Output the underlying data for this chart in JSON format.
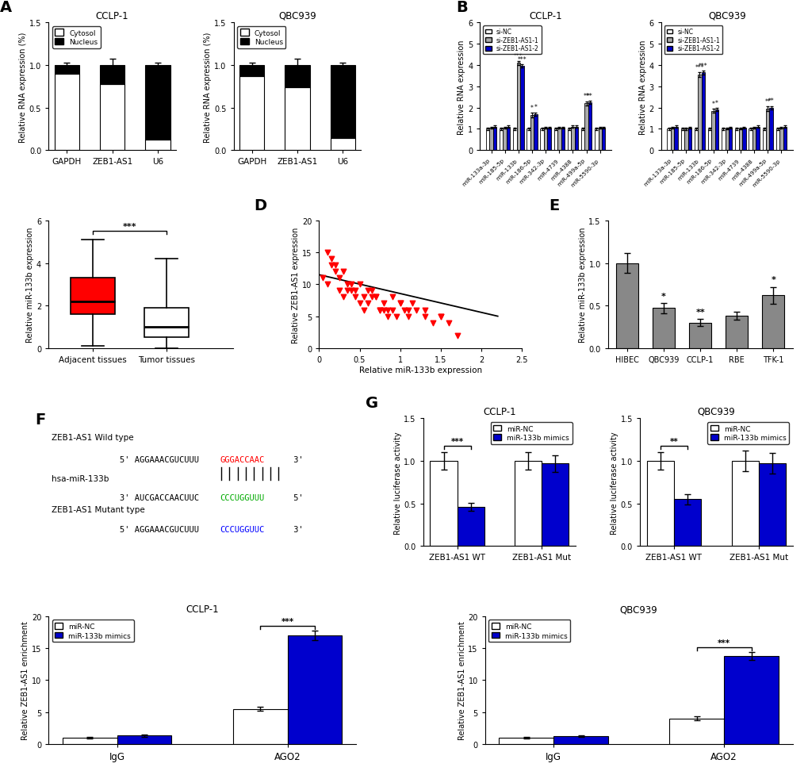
{
  "panel_A": {
    "title_left": "CCLP-1",
    "title_right": "QBC939",
    "categories": [
      "GAPDH",
      "ZEB1-AS1",
      "U6"
    ],
    "cytosol_CCLP1": [
      0.9,
      0.78,
      0.12
    ],
    "nucleus_CCLP1": [
      0.1,
      0.22,
      0.88
    ],
    "cytosol_QBC939": [
      0.87,
      0.74,
      0.14
    ],
    "nucleus_QBC939": [
      0.13,
      0.26,
      0.86
    ],
    "total_err": [
      0.03,
      0.07,
      0.03
    ],
    "ylabel": "Relative RNA expression (%)",
    "ylim": [
      0,
      1.5
    ],
    "yticks": [
      0.0,
      0.5,
      1.0,
      1.5
    ]
  },
  "panel_B": {
    "title_left": "CCLP-1",
    "title_right": "QBC939",
    "categories": [
      "miR-133a-3p",
      "miR-185-5p",
      "miR-133b",
      "miR-186-5p",
      "miR-342-3p",
      "miR-4739",
      "miR-4388",
      "miR-499a-5p",
      "miR-5590-3p"
    ],
    "siNC_CCLP1": [
      1.0,
      1.0,
      1.0,
      1.0,
      1.0,
      1.0,
      1.0,
      1.0,
      1.0
    ],
    "siZEB1_1_CCLP1": [
      1.05,
      1.05,
      4.1,
      1.65,
      1.05,
      1.05,
      1.1,
      2.2,
      1.05
    ],
    "siZEB1_2_CCLP1": [
      1.1,
      1.1,
      3.95,
      1.7,
      1.05,
      1.05,
      1.1,
      2.25,
      1.05
    ],
    "siNC_QBC939": [
      1.0,
      1.0,
      1.0,
      1.0,
      1.0,
      1.0,
      1.0,
      1.0,
      1.0
    ],
    "siZEB1_1_QBC939": [
      1.05,
      1.0,
      3.55,
      1.85,
      1.02,
      1.02,
      1.05,
      1.95,
      1.05
    ],
    "siZEB1_2_QBC939": [
      1.1,
      1.05,
      3.65,
      1.9,
      1.05,
      1.05,
      1.1,
      2.0,
      1.1
    ],
    "err_NC_CCLP1": [
      0.05,
      0.05,
      0.05,
      0.05,
      0.05,
      0.05,
      0.05,
      0.05,
      0.05
    ],
    "err_1_CCLP1": [
      0.05,
      0.05,
      0.1,
      0.1,
      0.05,
      0.05,
      0.05,
      0.1,
      0.05
    ],
    "err_2_CCLP1": [
      0.05,
      0.05,
      0.08,
      0.08,
      0.05,
      0.05,
      0.05,
      0.08,
      0.05
    ],
    "err_NC_QBC939": [
      0.05,
      0.05,
      0.05,
      0.05,
      0.05,
      0.05,
      0.05,
      0.05,
      0.05
    ],
    "err_1_QBC939": [
      0.05,
      0.05,
      0.1,
      0.1,
      0.05,
      0.05,
      0.05,
      0.1,
      0.05
    ],
    "err_2_QBC939": [
      0.05,
      0.05,
      0.08,
      0.08,
      0.05,
      0.05,
      0.05,
      0.08,
      0.05
    ],
    "ylabel": "Relative RNA expression",
    "ylim": [
      0,
      6
    ],
    "yticks": [
      0,
      1,
      2,
      3,
      4,
      5,
      6
    ]
  },
  "panel_C": {
    "adj_median": 2.2,
    "adj_q1": 1.6,
    "adj_q3": 3.3,
    "adj_whislo": 0.1,
    "adj_whishi": 5.1,
    "tum_median": 1.0,
    "tum_q1": 0.5,
    "tum_q3": 1.9,
    "tum_whislo": 0.0,
    "tum_whishi": 4.2,
    "ylabel": "Relative miR-133b expression",
    "ylim": [
      0,
      6
    ],
    "yticks": [
      0,
      2,
      4,
      6
    ],
    "categories": [
      "Adjacent tissues",
      "Tumor tissues"
    ],
    "sig_text": "***"
  },
  "panel_D": {
    "xlabel": "Relative miR-133b expression",
    "ylabel": "Relative ZEB1-AS1 expression",
    "xlim": [
      0,
      2.5
    ],
    "ylim": [
      0,
      20
    ],
    "xticks": [
      0.0,
      0.5,
      1.0,
      1.5,
      2.0,
      2.5
    ],
    "yticks": [
      0,
      5,
      10,
      15,
      20
    ],
    "scatter_x": [
      0.05,
      0.1,
      0.15,
      0.2,
      0.25,
      0.3,
      0.35,
      0.4,
      0.45,
      0.5,
      0.55,
      0.6,
      0.65,
      0.7,
      0.75,
      0.8,
      0.85,
      0.9,
      0.95,
      1.0,
      1.05,
      1.1,
      1.15,
      1.2,
      1.3,
      1.4,
      1.5,
      1.6,
      1.7,
      0.1,
      0.2,
      0.3,
      0.4,
      0.5,
      0.6,
      0.7,
      0.8,
      0.9,
      1.0,
      0.15,
      0.25,
      0.35,
      0.55,
      0.65,
      0.75,
      0.45,
      0.85,
      1.1,
      1.3,
      1.5
    ],
    "scatter_y": [
      11,
      10,
      13,
      12,
      9,
      8,
      9,
      10,
      9,
      7,
      8,
      7,
      8,
      8,
      6,
      7,
      6,
      8,
      5,
      7,
      6,
      5,
      7,
      6,
      5,
      4,
      5,
      4,
      2,
      15,
      13,
      12,
      9,
      10,
      9,
      8,
      6,
      6,
      7,
      14,
      11,
      10,
      6,
      9,
      6,
      8,
      5,
      6,
      6,
      5
    ],
    "line_x": [
      0.0,
      2.2
    ],
    "line_y": [
      11.5,
      5.0
    ]
  },
  "panel_E": {
    "categories": [
      "HIBEC",
      "QBC939",
      "CCLP-1",
      "RBE",
      "TFK-1"
    ],
    "values": [
      1.0,
      0.47,
      0.3,
      0.38,
      0.62
    ],
    "errors": [
      0.12,
      0.06,
      0.04,
      0.05,
      0.1
    ],
    "bar_color": "#888888",
    "ylabel": "Relative miR-133b expression",
    "ylim": [
      0,
      1.5
    ],
    "yticks": [
      0.0,
      0.5,
      1.0,
      1.5
    ],
    "sig": [
      "",
      "*",
      "**",
      "",
      "*"
    ]
  },
  "panel_F": {
    "label_wt": "ZEB1-AS1 Wild type",
    "label_mir": "hsa-miR-133b",
    "label_mut": "ZEB1-AS1 Mutant type"
  },
  "panel_G": {
    "title_left": "CCLP-1",
    "title_right": "QBC939",
    "categories": [
      "ZEB1-AS1 WT",
      "ZEB1-AS1 Mut"
    ],
    "miRNC_CCLP1": [
      1.0,
      1.0
    ],
    "miR133b_CCLP1": [
      0.46,
      0.97
    ],
    "miRNC_QBC939": [
      1.0,
      1.0
    ],
    "miR133b_QBC939": [
      0.55,
      0.97
    ],
    "err_NC_CCLP1": [
      0.1,
      0.1
    ],
    "err_133b_CCLP1": [
      0.05,
      0.1
    ],
    "err_NC_QBC939": [
      0.1,
      0.12
    ],
    "err_133b_QBC939": [
      0.06,
      0.12
    ],
    "ylabel": "Relative luciferase activity",
    "ylim": [
      0,
      1.5
    ],
    "yticks": [
      0.0,
      0.5,
      1.0,
      1.5
    ],
    "sig_CCLP1": [
      "***",
      ""
    ],
    "sig_QBC939": [
      "**",
      ""
    ]
  },
  "panel_H": {
    "title_left": "CCLP-1",
    "title_right": "QBC939",
    "categories": [
      "IgG",
      "AGO2"
    ],
    "miRNC_CCLP1": [
      1.0,
      5.5
    ],
    "miR133b_CCLP1": [
      1.3,
      17.0
    ],
    "miRNC_QBC939": [
      1.0,
      4.0
    ],
    "miR133b_QBC939": [
      1.2,
      13.8
    ],
    "err_NC_CCLP1": [
      0.1,
      0.3
    ],
    "err_133b_CCLP1": [
      0.15,
      0.7
    ],
    "err_NC_QBC939": [
      0.1,
      0.3
    ],
    "err_133b_QBC939": [
      0.15,
      0.6
    ],
    "ylabel": "Relative ZEB1-AS1 enrichment",
    "ylim": [
      0,
      20
    ],
    "yticks": [
      0,
      5,
      10,
      15,
      20
    ],
    "sig_CCLP1": [
      "",
      "***"
    ],
    "sig_QBC939": [
      "",
      "***"
    ]
  },
  "colors": {
    "white": "#FFFFFF",
    "black": "#000000",
    "blue": "#0000CD",
    "red": "#FF0000"
  }
}
